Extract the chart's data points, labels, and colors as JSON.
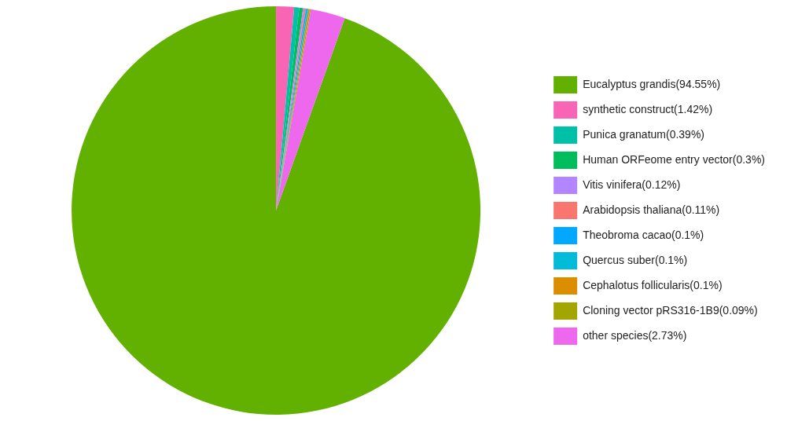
{
  "chart_data": {
    "type": "pie",
    "categories": [
      "Eucalyptus grandis(94.55%)",
      "synthetic construct(1.42%)",
      "Punica granatum(0.39%)",
      "Human ORFeome entry vector(0.3%)",
      "Vitis vinifera(0.12%)",
      "Arabidopsis thaliana(0.11%)",
      "Theobroma cacao(0.1%)",
      "Quercus suber(0.1%)",
      "Cephalotus follicularis(0.1%)",
      "Cloning vector pRS316-1B9(0.09%)",
      "other species(2.73%)"
    ],
    "values": [
      94.55,
      1.42,
      0.39,
      0.3,
      0.12,
      0.11,
      0.1,
      0.1,
      0.1,
      0.09,
      2.73
    ],
    "colors": [
      "#62b000",
      "#f865b5",
      "#00c1a8",
      "#00bd5c",
      "#b385ff",
      "#f8766d",
      "#00a9ff",
      "#00bcd8",
      "#db8e00",
      "#a3a500",
      "#ed68ed"
    ],
    "legend": "right"
  }
}
